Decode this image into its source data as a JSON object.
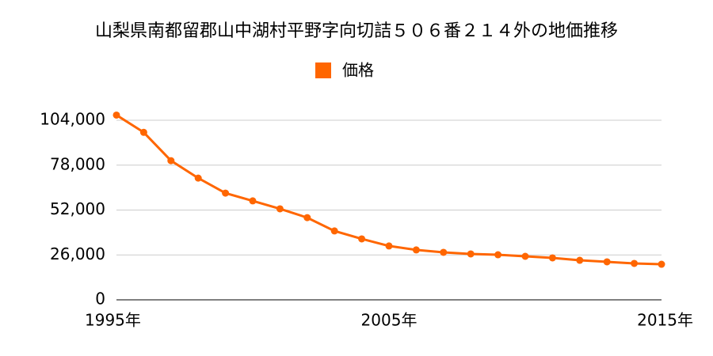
{
  "chart_data": {
    "type": "line",
    "title": "山梨県南都留郡山中湖村平野字向切詰５０６番２１４外の地価推移",
    "x": [
      1995,
      1996,
      1997,
      1998,
      1999,
      2000,
      2001,
      2002,
      2003,
      2004,
      2005,
      2006,
      2007,
      2008,
      2009,
      2010,
      2011,
      2012,
      2013,
      2014,
      2015
    ],
    "series": [
      {
        "name": "価格",
        "color": "#ff6600",
        "values": [
          107000,
          97000,
          80600,
          70500,
          61800,
          57300,
          52700,
          47600,
          39900,
          35300,
          31200,
          28900,
          27500,
          26600,
          26100,
          25200,
          24300,
          22900,
          22000,
          21100,
          20600
        ]
      }
    ],
    "xlim": [
      1995,
      2015
    ],
    "xticks": [
      {
        "value": 1995,
        "label": "1995年"
      },
      {
        "value": 2005,
        "label": "2005年"
      },
      {
        "value": 2015,
        "label": "2015年"
      }
    ],
    "ylim": [
      0,
      104000
    ],
    "yticks": [
      {
        "value": 0,
        "label": "0"
      },
      {
        "value": 26000,
        "label": "26,000"
      },
      {
        "value": 52000,
        "label": "52,000"
      },
      {
        "value": 78000,
        "label": "78,000"
      },
      {
        "value": 104000,
        "label": "104,000"
      }
    ],
    "grid": true
  }
}
